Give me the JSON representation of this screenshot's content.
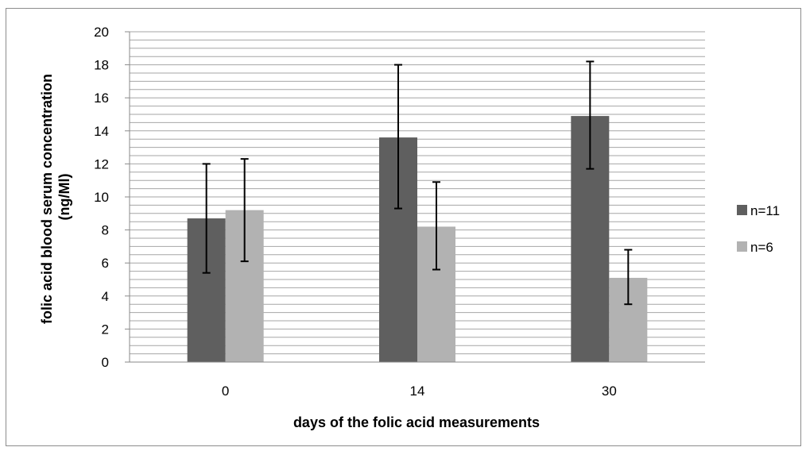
{
  "chart_data": {
    "type": "bar",
    "title": "",
    "xlabel": "days of the folic acid measurements",
    "ylabel": "folic acid blood serum concentration (ng/Ml)",
    "ylabel_lines": [
      "folic acid blood serum concentration",
      "(ng/Ml)"
    ],
    "categories": [
      "0",
      "14",
      "30"
    ],
    "ylim": [
      0,
      20
    ],
    "ytick_step": 2,
    "yticks": [
      "0",
      "2",
      "4",
      "6",
      "8",
      "10",
      "12",
      "14",
      "16",
      "18",
      "20"
    ],
    "minor_grid_step": 0.5,
    "grid": true,
    "legend_position": "right",
    "series": [
      {
        "name": "n=11",
        "color": "#5f5f5f",
        "values": [
          8.7,
          13.6,
          14.9
        ],
        "error_low": [
          5.4,
          9.3,
          11.7
        ],
        "error_high": [
          12.0,
          18.0,
          18.2
        ]
      },
      {
        "name": "n=6",
        "color": "#b2b2b2",
        "values": [
          9.2,
          8.2,
          5.1
        ],
        "error_low": [
          6.1,
          5.6,
          3.5
        ],
        "error_high": [
          12.3,
          10.9,
          6.8
        ]
      }
    ]
  }
}
